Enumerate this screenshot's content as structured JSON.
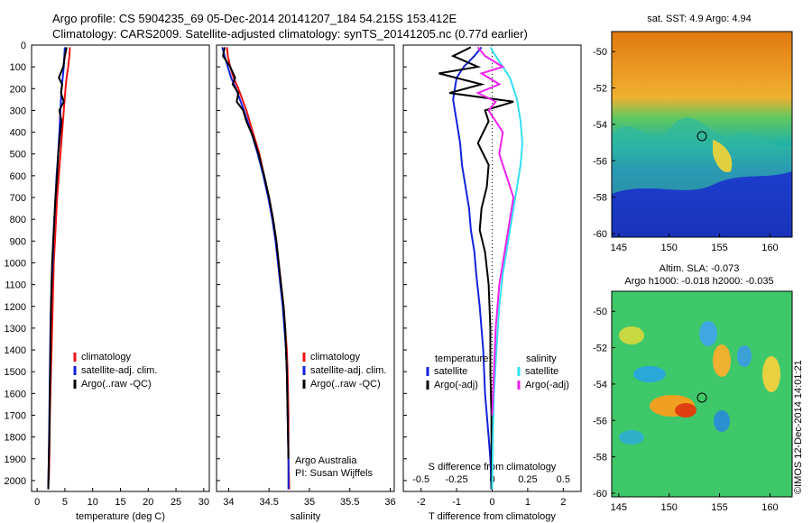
{
  "header": {
    "line1": "Argo profile: CS 5904235_69 05-Dec-2014 20141207_184 54.215S 153.412E",
    "line2": "Climatology: CARS2009. Satellite-adjusted climatology: synTS_20141205.nc (0.77d earlier)"
  },
  "colors": {
    "climatology": "#ee1111",
    "satellite_adj": "#1122dd",
    "argo": "#000000",
    "satellite_salinity": "#33e0f0",
    "argo_adj_salinity": "#ee22ee"
  },
  "chart_data": [
    {
      "type": "line",
      "panel": "temperature",
      "xlabel": "temperature (deg C)",
      "ylabel": "",
      "xlim": [
        -1,
        31
      ],
      "ylim": [
        2050,
        0
      ],
      "xticks": [
        "0",
        "5",
        "10",
        "15",
        "20",
        "25",
        "30"
      ],
      "yticks": [
        "0",
        "100",
        "200",
        "300",
        "400",
        "500",
        "600",
        "700",
        "800",
        "900",
        "1000",
        "1100",
        "1200",
        "1300",
        "1400",
        "1500",
        "1600",
        "1700",
        "1800",
        "1900",
        "2000"
      ],
      "legend": [
        "climatology",
        "satellite-adj. clim.",
        "Argo(..raw -QC)"
      ],
      "series": [
        {
          "name": "climatology",
          "x": [
            5.9,
            5.8,
            5.6,
            5.3,
            5.1,
            4.8,
            4.5,
            4.2,
            3.9,
            3.6,
            3.4,
            3.2,
            3.0,
            2.9,
            2.8,
            2.7,
            2.6,
            2.5,
            2.4,
            2.3,
            2.2,
            2.1
          ],
          "y": [
            10,
            50,
            100,
            150,
            200,
            300,
            400,
            500,
            600,
            700,
            800,
            900,
            1000,
            1100,
            1200,
            1300,
            1400,
            1500,
            1600,
            1700,
            1900,
            2000
          ]
        },
        {
          "name": "satellite-adj. clim.",
          "x": [
            5.0,
            4.9,
            4.8,
            4.6,
            4.4,
            4.2,
            4.0,
            3.8,
            3.5,
            3.3,
            3.1,
            2.9,
            2.8,
            2.6,
            2.5,
            2.4,
            2.3,
            2.2,
            2.1,
            2.0
          ],
          "y": [
            10,
            50,
            100,
            150,
            200,
            300,
            400,
            500,
            600,
            700,
            800,
            900,
            1000,
            1100,
            1200,
            1300,
            1500,
            1700,
            1900,
            2040
          ]
        },
        {
          "name": "Argo(..raw -QC)",
          "x": [
            5.3,
            5.0,
            4.7,
            3.9,
            4.5,
            4.3,
            4.8,
            4.0,
            4.4,
            4.1,
            3.8,
            3.6,
            3.3,
            3.1,
            2.9,
            2.7,
            2.5,
            2.4,
            2.3,
            2.2,
            2.1,
            2.0
          ],
          "y": [
            10,
            50,
            100,
            150,
            180,
            220,
            260,
            300,
            350,
            420,
            500,
            600,
            700,
            800,
            900,
            1000,
            1200,
            1400,
            1600,
            1800,
            1900,
            2040
          ]
        }
      ]
    },
    {
      "type": "line",
      "panel": "salinity",
      "xlabel": "salinity",
      "ylabel": "",
      "xlim": [
        33.85,
        36.05
      ],
      "ylim": [
        2050,
        0
      ],
      "xticks": [
        "34",
        "34.5",
        "35",
        "35.5",
        "36"
      ],
      "legend": [
        "climatology",
        "satellite-adj. clim.",
        "Argo(..raw -QC)"
      ],
      "annotation": [
        "Argo Australia",
        "PI: Susan Wijffels"
      ],
      "series": [
        {
          "name": "climatology",
          "x": [
            33.98,
            33.99,
            34.02,
            34.06,
            34.12,
            34.22,
            34.3,
            34.38,
            34.44,
            34.5,
            34.55,
            34.59,
            34.62,
            34.65,
            34.68,
            34.7,
            34.72,
            34.73,
            34.74,
            34.74,
            34.75
          ],
          "y": [
            10,
            50,
            100,
            150,
            200,
            300,
            400,
            500,
            600,
            700,
            800,
            900,
            1000,
            1100,
            1200,
            1300,
            1400,
            1500,
            1700,
            1900,
            2040
          ]
        },
        {
          "name": "satellite-adj. clim.",
          "x": [
            33.92,
            33.95,
            33.99,
            34.03,
            34.09,
            34.19,
            34.28,
            34.36,
            34.43,
            34.49,
            34.54,
            34.58,
            34.61,
            34.64,
            34.67,
            34.69,
            34.71,
            34.72,
            34.73,
            34.74,
            34.74
          ],
          "y": [
            10,
            50,
            100,
            150,
            200,
            300,
            400,
            500,
            600,
            700,
            800,
            900,
            1000,
            1100,
            1200,
            1300,
            1400,
            1500,
            1700,
            1900,
            2040
          ]
        },
        {
          "name": "Argo(..raw -QC)",
          "x": [
            33.95,
            33.93,
            34.02,
            34.08,
            34.05,
            34.12,
            34.1,
            34.18,
            34.22,
            34.3,
            34.37,
            34.44,
            34.5,
            34.55,
            34.59,
            34.62,
            34.65,
            34.68,
            34.7,
            34.72,
            34.73,
            34.74
          ],
          "y": [
            10,
            50,
            100,
            150,
            180,
            220,
            260,
            300,
            350,
            420,
            500,
            600,
            700,
            800,
            900,
            1000,
            1100,
            1200,
            1300,
            1500,
            1700,
            1900
          ]
        }
      ]
    },
    {
      "type": "line",
      "panel": "difference",
      "xlabel": "T difference from climatology",
      "x2label": "S difference from climatology",
      "xlim": [
        -2.5,
        2.5
      ],
      "ylim": [
        2050,
        0
      ],
      "xticks": [
        "-2",
        "-1",
        "0",
        "1",
        "2"
      ],
      "x2ticks": [
        "-0.5",
        "-0.25",
        "0",
        "0.25",
        "0.5"
      ],
      "legend_left_title": "temperature",
      "legend_right_title": "salinity",
      "legend_left": [
        "satellite",
        "Argo(-adj)"
      ],
      "legend_right": [
        "satellite",
        "Argo(-adj)"
      ],
      "series": [
        {
          "name": "temperature satellite",
          "x": [
            -0.3,
            -0.5,
            -0.8,
            -1.0,
            -1.1,
            -1.0,
            -0.9,
            -0.85,
            -0.75,
            -0.65,
            -0.6,
            -0.5,
            -0.45,
            -0.35,
            -0.25,
            -0.2,
            -0.15,
            -0.1,
            -0.05,
            -0.02
          ],
          "y": [
            10,
            50,
            100,
            150,
            250,
            350,
            450,
            550,
            650,
            750,
            850,
            950,
            1050,
            1200,
            1400,
            1600,
            1700,
            1800,
            1900,
            2040
          ]
        },
        {
          "name": "temperature Argo(-adj)",
          "x": [
            -0.6,
            -1.1,
            -0.4,
            -1.5,
            -0.3,
            -1.2,
            0.6,
            -0.2,
            -0.1,
            -0.4,
            -0.1,
            -0.15,
            -0.3,
            -0.35,
            -0.2,
            -0.1,
            -0.05,
            -0.05,
            -0.02,
            -0.02
          ],
          "y": [
            10,
            50,
            100,
            130,
            180,
            220,
            260,
            300,
            350,
            450,
            550,
            650,
            750,
            850,
            950,
            1100,
            1300,
            1500,
            1700,
            2040
          ]
        },
        {
          "name": "salinity satellite",
          "x": [
            -0.05,
            0.1,
            0.3,
            0.5,
            0.7,
            0.8,
            0.85,
            0.8,
            0.7,
            0.6,
            0.5,
            0.4,
            0.3,
            0.2,
            0.12,
            0.05,
            0.02,
            0.0
          ],
          "y": [
            10,
            50,
            100,
            150,
            250,
            350,
            450,
            550,
            650,
            750,
            850,
            950,
            1050,
            1200,
            1400,
            1600,
            1800,
            2040
          ]
        },
        {
          "name": "salinity Argo(-adj)",
          "x": [
            -0.4,
            -0.2,
            0.3,
            -0.3,
            0.2,
            -0.4,
            0.1,
            -0.1,
            0.3,
            0.2,
            0.4,
            0.6,
            0.5,
            0.4,
            0.3,
            0.2,
            0.1,
            0.05,
            0.0
          ],
          "y": [
            10,
            50,
            100,
            130,
            180,
            220,
            260,
            300,
            400,
            500,
            600,
            700,
            800,
            900,
            1000,
            1100,
            1300,
            1500,
            1700
          ]
        }
      ]
    },
    {
      "type": "heatmap",
      "panel": "sst_map",
      "title": "sat. SST: 4.9  Argo: 4.94",
      "xticks": [
        "145",
        "150",
        "155",
        "160"
      ],
      "yticks": [
        "-50",
        "-52",
        "-54",
        "-56",
        "-58",
        "-60"
      ],
      "xlim": [
        144.3,
        162.2
      ],
      "ylim": [
        -60.2,
        -48.9
      ],
      "argo_position": {
        "lon": 153.412,
        "lat": -54.215
      }
    },
    {
      "type": "heatmap",
      "panel": "sla_map",
      "title": "Altim. SLA: -0.073",
      "subtitle": "Argo h1000: -0.018 h2000: -0.035",
      "xticks": [
        "145",
        "150",
        "155",
        "160"
      ],
      "yticks": [
        "-50",
        "-52",
        "-54",
        "-56",
        "-58",
        "-60"
      ],
      "xlim": [
        144.3,
        162.2
      ],
      "ylim": [
        -60.2,
        -48.9
      ],
      "argo_position": {
        "lon": 153.412,
        "lat": -54.215
      }
    }
  ],
  "footer": {
    "credit": "©IMOS 12-Dec-2014 14:01:21"
  }
}
